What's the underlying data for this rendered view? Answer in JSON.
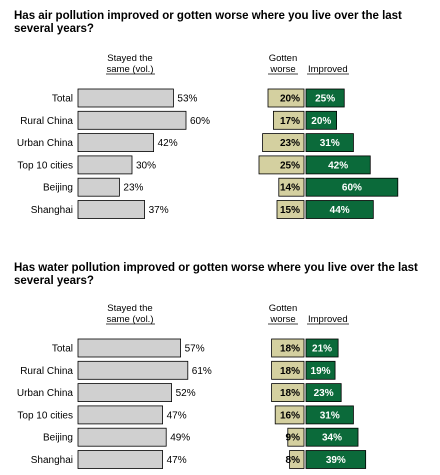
{
  "chart_data": [
    {
      "type": "bar",
      "title": "Has air pollution improved or gotten worse where you live over the last several years?",
      "column_headers": {
        "same": [
          "Stayed the",
          "same (vol.)"
        ],
        "worse": [
          "Gotten",
          "worse"
        ],
        "improved": "Improved"
      },
      "categories": [
        "Total",
        "Rural China",
        "Urban China",
        "Top 10 cities",
        "Beijing",
        "Shanghai"
      ],
      "series": [
        {
          "name": "Stayed the same (vol.)",
          "values": [
            53,
            60,
            42,
            30,
            23,
            37
          ],
          "color": "#d0d0d0"
        },
        {
          "name": "Gotten worse",
          "values": [
            20,
            17,
            23,
            25,
            14,
            15
          ],
          "color": "#d4d0a0"
        },
        {
          "name": "Improved",
          "values": [
            25,
            20,
            31,
            42,
            60,
            44
          ],
          "color": "#0b6a3a"
        }
      ]
    },
    {
      "type": "bar",
      "title": "Has water pollution improved or gotten worse where you live over the last several years?",
      "column_headers": {
        "same": [
          "Stayed the",
          "same (vol.)"
        ],
        "worse": [
          "Gotten",
          "worse"
        ],
        "improved": "Improved"
      },
      "categories": [
        "Total",
        "Rural China",
        "Urban China",
        "Top 10 cities",
        "Beijing",
        "Shanghai"
      ],
      "series": [
        {
          "name": "Stayed the same (vol.)",
          "values": [
            57,
            61,
            52,
            47,
            49,
            47
          ],
          "color": "#d0d0d0"
        },
        {
          "name": "Gotten worse",
          "values": [
            18,
            18,
            18,
            16,
            9,
            8
          ],
          "color": "#d4d0a0"
        },
        {
          "name": "Improved",
          "values": [
            21,
            19,
            23,
            31,
            34,
            39
          ],
          "color": "#0b6a3a"
        }
      ]
    }
  ]
}
